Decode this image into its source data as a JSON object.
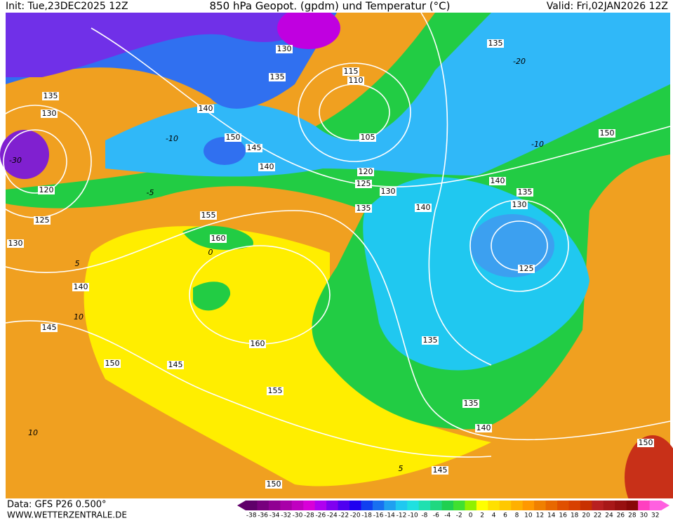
{
  "header": {
    "init": "Init: Tue,23DEC2025 12Z",
    "title": "850 hPa Geopot. (gpdm) und Temperatur (°C)",
    "valid": "Valid: Fri,02JAN2026 12Z"
  },
  "footer": {
    "data": "Data: GFS P26 0.500°",
    "site": "WWW.WETTERZENTRALE.DE"
  },
  "colorbar": {
    "labels": [
      -38,
      -36,
      -34,
      -32,
      -30,
      -28,
      -26,
      -24,
      -22,
      -20,
      -18,
      -16,
      -14,
      -12,
      -10,
      -8,
      -6,
      -4,
      -2,
      0,
      2,
      4,
      6,
      8,
      10,
      12,
      14,
      16,
      18,
      20,
      22,
      24,
      26,
      28,
      30,
      32
    ],
    "colors": [
      "#60006a",
      "#78007e",
      "#900092",
      "#a800a8",
      "#c000c0",
      "#d800d8",
      "#b000f0",
      "#8000f0",
      "#5000f0",
      "#2000f0",
      "#1040f0",
      "#1870f0",
      "#20a0f0",
      "#20c8f0",
      "#20e0e0",
      "#20e0b0",
      "#20d880",
      "#20d050",
      "#40e030",
      "#90f000",
      "#ffff00",
      "#ffe000",
      "#ffc800",
      "#ffb000",
      "#ff9800",
      "#f08000",
      "#e86800",
      "#e05000",
      "#d84000",
      "#c83000",
      "#b82020",
      "#a81818",
      "#981010",
      "#880808",
      "#ff40c0",
      "#ff60e0"
    ]
  },
  "contours": [
    "130",
    "135",
    "140",
    "150",
    "145",
    "140",
    "135",
    "130",
    "120",
    "125",
    "130",
    "140",
    "145",
    "150",
    "145",
    "155",
    "160",
    "160",
    "155",
    "150",
    "145",
    "140",
    "135",
    "135",
    "125",
    "130",
    "135",
    "140",
    "140",
    "135",
    "130",
    "125",
    "120",
    "105",
    "110",
    "115",
    "135",
    "150",
    "150"
  ],
  "isotherms": [
    "-10",
    "-5",
    "0",
    "5",
    "10",
    "10",
    "5",
    "-10",
    "-20",
    "-30"
  ]
}
